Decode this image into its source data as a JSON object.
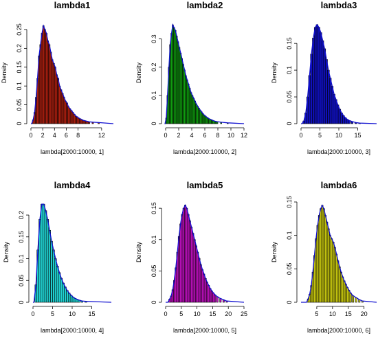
{
  "chart_data": [
    {
      "type": "bar",
      "title": "lambda1",
      "xlabel": "lambda[2000:10000, 1]",
      "ylabel": "Density",
      "xlim": [
        0,
        14
      ],
      "ylim": [
        0,
        0.27
      ],
      "xticks": [
        0,
        2,
        4,
        6,
        8,
        12
      ],
      "yticks": [
        0,
        0.05,
        0.1,
        0.15,
        0.2,
        0.25
      ],
      "bar_color": "#b02010",
      "bin_width": 0.25,
      "x": [
        0.375,
        0.625,
        0.875,
        1.125,
        1.375,
        1.625,
        1.875,
        2.125,
        2.375,
        2.625,
        2.875,
        3.125,
        3.375,
        3.625,
        3.875,
        4.125,
        4.375,
        4.625,
        4.875,
        5.125,
        5.375,
        5.625,
        5.875,
        6.125,
        6.375,
        6.625,
        6.875,
        7.125,
        7.375,
        7.625,
        7.875,
        8.125,
        8.375,
        8.625,
        8.875,
        9.125,
        9.375,
        9.625,
        9.875,
        10.5,
        11.5
      ],
      "density": [
        0.01,
        0.03,
        0.07,
        0.12,
        0.18,
        0.21,
        0.24,
        0.26,
        0.25,
        0.24,
        0.22,
        0.21,
        0.19,
        0.17,
        0.16,
        0.15,
        0.13,
        0.12,
        0.1,
        0.09,
        0.08,
        0.07,
        0.06,
        0.055,
        0.045,
        0.04,
        0.035,
        0.03,
        0.025,
        0.02,
        0.018,
        0.015,
        0.013,
        0.011,
        0.009,
        0.008,
        0.007,
        0.006,
        0.005,
        0.004,
        0.003
      ]
    },
    {
      "type": "bar",
      "title": "lambda2",
      "xlabel": "lambda[2000:10000, 2]",
      "ylabel": "Density",
      "xlim": [
        0,
        12
      ],
      "ylim": [
        0,
        0.36
      ],
      "xticks": [
        0,
        2,
        4,
        6,
        8,
        10,
        12
      ],
      "yticks": [
        0,
        0.1,
        0.2,
        0.3
      ],
      "bar_color": "#10a010",
      "bin_width": 0.2,
      "x": [
        0.1,
        0.3,
        0.5,
        0.7,
        0.9,
        1.1,
        1.3,
        1.5,
        1.7,
        1.9,
        2.1,
        2.3,
        2.5,
        2.7,
        2.9,
        3.1,
        3.3,
        3.5,
        3.7,
        3.9,
        4.1,
        4.3,
        4.5,
        4.7,
        4.9,
        5.1,
        5.3,
        5.5,
        5.7,
        5.9,
        6.1,
        6.3,
        6.5,
        6.7,
        6.9,
        7.1,
        7.3,
        7.5,
        7.7,
        7.9,
        8.5,
        9.5
      ],
      "density": [
        0.02,
        0.1,
        0.2,
        0.28,
        0.32,
        0.35,
        0.34,
        0.33,
        0.31,
        0.29,
        0.27,
        0.25,
        0.23,
        0.21,
        0.19,
        0.17,
        0.155,
        0.14,
        0.125,
        0.11,
        0.1,
        0.09,
        0.08,
        0.07,
        0.062,
        0.055,
        0.048,
        0.042,
        0.036,
        0.031,
        0.027,
        0.023,
        0.02,
        0.017,
        0.015,
        0.013,
        0.011,
        0.009,
        0.008,
        0.007,
        0.005,
        0.003
      ]
    },
    {
      "type": "bar",
      "title": "lambda3",
      "xlabel": "lambda[2000:10000, 3]",
      "ylabel": "Density",
      "xlim": [
        0,
        20
      ],
      "ylim": [
        0,
        0.19
      ],
      "xticks": [
        0,
        5,
        10,
        15
      ],
      "yticks": [
        0,
        0.05,
        0.1,
        0.15
      ],
      "bar_color": "#1010c0",
      "bin_width": 0.5,
      "x": [
        0.75,
        1.25,
        1.75,
        2.25,
        2.75,
        3.25,
        3.75,
        4.25,
        4.75,
        5.25,
        5.75,
        6.25,
        6.75,
        7.25,
        7.75,
        8.25,
        8.75,
        9.25,
        9.75,
        10.25,
        10.75,
        11.25,
        11.75,
        12.25,
        12.75,
        13.5,
        14.5,
        15.5
      ],
      "density": [
        0.005,
        0.02,
        0.05,
        0.09,
        0.13,
        0.16,
        0.18,
        0.185,
        0.18,
        0.17,
        0.155,
        0.14,
        0.12,
        0.1,
        0.085,
        0.07,
        0.055,
        0.045,
        0.035,
        0.027,
        0.02,
        0.015,
        0.011,
        0.008,
        0.006,
        0.004,
        0.002,
        0.001
      ]
    },
    {
      "type": "bar",
      "title": "lambda4",
      "xlabel": "lambda[2000:10000, 4]",
      "ylabel": "Density",
      "xlim": [
        0,
        20
      ],
      "ylim": [
        0,
        0.23
      ],
      "xticks": [
        0,
        5,
        10,
        15
      ],
      "yticks": [
        0,
        0.05,
        0.1,
        0.15,
        0.2
      ],
      "bar_color": "#20d0d0",
      "bin_width": 0.5,
      "x": [
        0.75,
        1.25,
        1.75,
        2.25,
        2.75,
        3.25,
        3.75,
        4.25,
        4.75,
        5.25,
        5.75,
        6.25,
        6.75,
        7.25,
        7.75,
        8.25,
        8.75,
        9.25,
        9.75,
        10.25,
        10.75,
        11.25,
        11.75,
        12.5,
        13.5
      ],
      "density": [
        0.04,
        0.12,
        0.19,
        0.225,
        0.225,
        0.21,
        0.19,
        0.165,
        0.14,
        0.12,
        0.1,
        0.083,
        0.068,
        0.055,
        0.044,
        0.035,
        0.027,
        0.021,
        0.016,
        0.012,
        0.009,
        0.007,
        0.005,
        0.003,
        0.002
      ]
    },
    {
      "type": "bar",
      "title": "lambda5",
      "xlabel": "lambda[2000:10000, 5]",
      "ylabel": "Density",
      "xlim": [
        0,
        25
      ],
      "ylim": [
        0,
        0.16
      ],
      "xticks": [
        0,
        5,
        10,
        15,
        20,
        25
      ],
      "yticks": [
        0,
        0.05,
        0.1,
        0.15
      ],
      "bar_color": "#c010c0",
      "bin_width": 0.5,
      "x": [
        1.25,
        1.75,
        2.25,
        2.75,
        3.25,
        3.75,
        4.25,
        4.75,
        5.25,
        5.75,
        6.25,
        6.75,
        7.25,
        7.75,
        8.25,
        8.75,
        9.25,
        9.75,
        10.25,
        10.75,
        11.25,
        11.75,
        12.25,
        12.75,
        13.25,
        13.75,
        14.25,
        14.75,
        15.25,
        15.75,
        16.5,
        17.5,
        18.5,
        19.5
      ],
      "density": [
        0.005,
        0.01,
        0.02,
        0.035,
        0.055,
        0.08,
        0.105,
        0.125,
        0.14,
        0.15,
        0.155,
        0.15,
        0.14,
        0.13,
        0.12,
        0.11,
        0.1,
        0.09,
        0.08,
        0.07,
        0.06,
        0.052,
        0.045,
        0.038,
        0.032,
        0.027,
        0.022,
        0.018,
        0.015,
        0.012,
        0.009,
        0.006,
        0.004,
        0.002
      ]
    },
    {
      "type": "bar",
      "title": "lambda6",
      "xlabel": "lambda[2000:10000, 6]",
      "ylabel": "Density",
      "xlim": [
        0,
        24
      ],
      "ylim": [
        0,
        0.15
      ],
      "xticks": [
        5,
        10,
        15,
        20
      ],
      "yticks": [
        0,
        0.05,
        0.1,
        0.15
      ],
      "bar_color": "#d0d010",
      "bin_width": 0.5,
      "x": [
        2.25,
        2.75,
        3.25,
        3.75,
        4.25,
        4.75,
        5.25,
        5.75,
        6.25,
        6.75,
        7.25,
        7.75,
        8.25,
        8.75,
        9.25,
        9.75,
        10.25,
        10.75,
        11.25,
        11.75,
        12.25,
        12.75,
        13.25,
        13.75,
        14.25,
        14.75,
        15.25,
        15.75,
        16.5,
        17.5,
        18.5,
        19.5
      ],
      "density": [
        0.005,
        0.012,
        0.025,
        0.045,
        0.07,
        0.095,
        0.115,
        0.13,
        0.14,
        0.145,
        0.14,
        0.13,
        0.12,
        0.11,
        0.1,
        0.095,
        0.09,
        0.082,
        0.072,
        0.062,
        0.053,
        0.045,
        0.038,
        0.032,
        0.027,
        0.022,
        0.018,
        0.014,
        0.01,
        0.007,
        0.004,
        0.002
      ]
    }
  ]
}
